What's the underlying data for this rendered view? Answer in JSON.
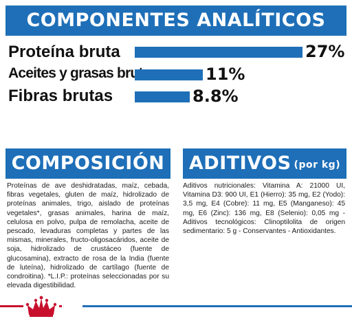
{
  "analytic": {
    "title": "COMPONENTES ANALÍTICOS",
    "rows": [
      {
        "label": "Proteína bruta",
        "value_text": "27%",
        "value": 27
      },
      {
        "label": "Aceites y grasas brutos",
        "value_text": "11%",
        "value": 11
      },
      {
        "label": "Fibras brutas",
        "value_text": "8.8%",
        "value": 8.8
      }
    ]
  },
  "composition": {
    "title": "COMPOSICIÓN",
    "text": "Proteínas de ave deshidratadas, maíz, cebada, fibras vegetales, gluten de maíz, hidrolizado de proteínas animales, trigo, aislado de proteínas vegetales*, grasas animales, harina de maíz, celulosa en polvo, pulpa de remolacha, aceite de pescado, levaduras completas y partes de las mismas, minerales, fructo-oligosacáridos, aceite de soja, hidrolizado de crustáceo (fuente de glucosamina), extracto de rosa de la India (fuente de luteína), hidrolizado de cartílago (fuente de condroitina). *L.I.P.: proteínas seleccionadas por su elevada digestibilidad."
  },
  "additives": {
    "title": "ADITIVOS",
    "title_sub": "(por kg)",
    "text": "Aditivos nutricionales: Vitamina A: 21000 UI, Vitamina D3: 900 UI, E1 (Hierro): 35 mg, E2 (Yodo): 3,5 mg, E4 (Cobre): 11 mg, E5 (Manganeso): 45 mg, E6 (Zinc): 136 mg, E8 (Selenio): 0,05 mg - Aditivos tecnológicos: Clinoptilolita de origen sedimentario: 5 g - Conservantes - Antioxidantes."
  },
  "colors": {
    "brand_blue": "#1e6fb8",
    "brand_red": "#c8102e"
  },
  "icons": {
    "logo": "royal-canin-crown-logo"
  }
}
